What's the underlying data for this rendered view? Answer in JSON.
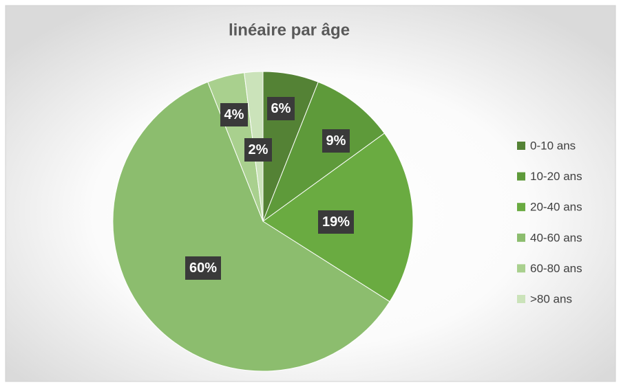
{
  "chart_data": {
    "type": "pie",
    "title": "linéaire par âge",
    "categories": [
      "0-10 ans",
      "10-20 ans",
      "20-40 ans",
      "40-60 ans",
      "60-80 ans",
      ">80 ans"
    ],
    "values": [
      6,
      9,
      19,
      60,
      4,
      2
    ],
    "value_labels": [
      "6%",
      "9%",
      "19%",
      "60%",
      "4%",
      "2%"
    ],
    "colors": [
      "#548235",
      "#5e9a3a",
      "#6aab41",
      "#8cbd6e",
      "#a9d08e",
      "#cbe3ba"
    ],
    "legend": "right"
  }
}
